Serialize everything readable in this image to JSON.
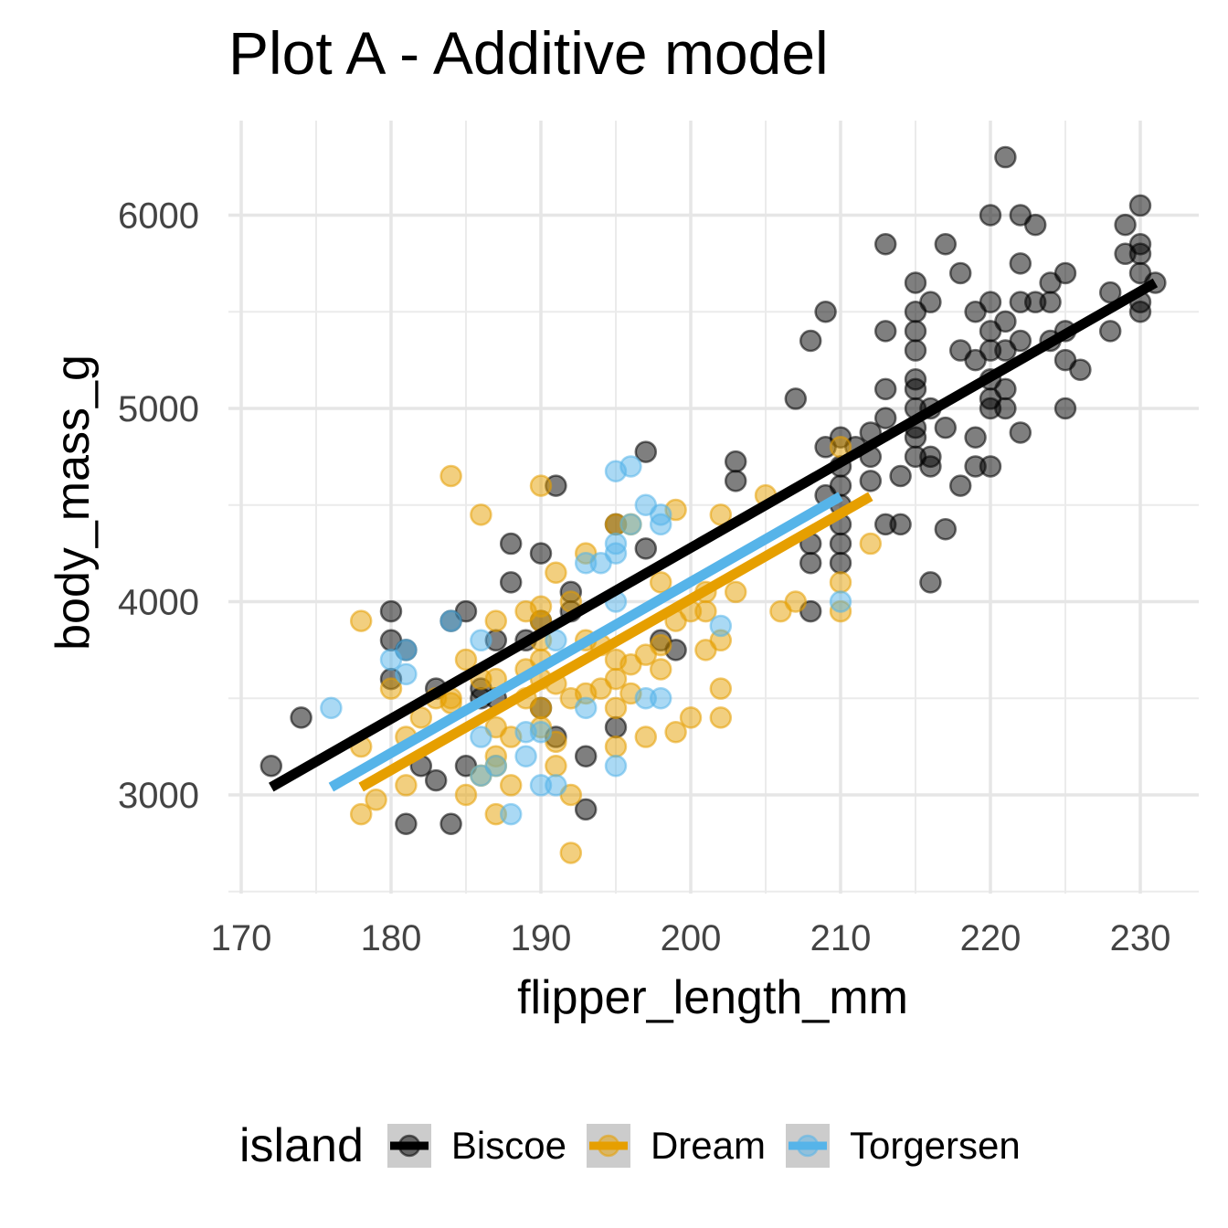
{
  "chart_data": {
    "type": "scatter",
    "title": "Plot A - Additive model",
    "xlabel": "flipper_length_mm",
    "ylabel": "body_mass_g",
    "xlim": [
      170,
      232
    ],
    "ylim": [
      2550,
      6450
    ],
    "x_ticks": [
      170,
      180,
      190,
      200,
      210,
      220,
      230
    ],
    "y_ticks": [
      3000,
      4000,
      5000,
      6000
    ],
    "grid": true,
    "legend": {
      "title": "island",
      "placement": "bottom"
    },
    "series": [
      {
        "name": "Biscoe",
        "color": "#000000",
        "points": [
          [
            172,
            3150
          ],
          [
            174,
            3400
          ],
          [
            180,
            3950
          ],
          [
            180,
            3800
          ],
          [
            180,
            3600
          ],
          [
            181,
            3750
          ],
          [
            181,
            2850
          ],
          [
            182,
            3150
          ],
          [
            183,
            3550
          ],
          [
            183,
            3075
          ],
          [
            184,
            2850
          ],
          [
            184,
            3900
          ],
          [
            185,
            3950
          ],
          [
            185,
            3150
          ],
          [
            186,
            3550
          ],
          [
            186,
            3500
          ],
          [
            187,
            3800
          ],
          [
            187,
            3500
          ],
          [
            188,
            4300
          ],
          [
            188,
            4100
          ],
          [
            189,
            3800
          ],
          [
            190,
            4250
          ],
          [
            190,
            3900
          ],
          [
            190,
            3450
          ],
          [
            191,
            4600
          ],
          [
            191,
            3300
          ],
          [
            192,
            4050
          ],
          [
            192,
            3950
          ],
          [
            193,
            3200
          ],
          [
            193,
            2925
          ],
          [
            195,
            4400
          ],
          [
            195,
            3350
          ],
          [
            197,
            4775
          ],
          [
            197,
            4275
          ],
          [
            198,
            3800
          ],
          [
            199,
            3750
          ],
          [
            203,
            4725
          ],
          [
            203,
            4625
          ],
          [
            207,
            5050
          ],
          [
            208,
            5350
          ],
          [
            208,
            4300
          ],
          [
            208,
            4200
          ],
          [
            208,
            3950
          ],
          [
            209,
            5500
          ],
          [
            209,
            4800
          ],
          [
            209,
            4550
          ],
          [
            210,
            4850
          ],
          [
            210,
            4700
          ],
          [
            210,
            4600
          ],
          [
            210,
            4500
          ],
          [
            210,
            4400
          ],
          [
            210,
            4200
          ],
          [
            210,
            4300
          ],
          [
            211,
            4800
          ],
          [
            212,
            4875
          ],
          [
            212,
            4750
          ],
          [
            212,
            4625
          ],
          [
            213,
            5850
          ],
          [
            213,
            5400
          ],
          [
            213,
            5100
          ],
          [
            213,
            4950
          ],
          [
            213,
            4400
          ],
          [
            214,
            4650
          ],
          [
            214,
            4400
          ],
          [
            215,
            5650
          ],
          [
            215,
            5500
          ],
          [
            215,
            5400
          ],
          [
            215,
            5300
          ],
          [
            215,
            5150
          ],
          [
            215,
            5100
          ],
          [
            215,
            5000
          ],
          [
            215,
            4900
          ],
          [
            215,
            4850
          ],
          [
            215,
            4750
          ],
          [
            216,
            5550
          ],
          [
            216,
            5000
          ],
          [
            216,
            4750
          ],
          [
            216,
            4700
          ],
          [
            216,
            4100
          ],
          [
            217,
            5850
          ],
          [
            217,
            4900
          ],
          [
            217,
            4375
          ],
          [
            218,
            5700
          ],
          [
            218,
            5300
          ],
          [
            218,
            4600
          ],
          [
            219,
            5500
          ],
          [
            219,
            5250
          ],
          [
            219,
            4850
          ],
          [
            219,
            4700
          ],
          [
            220,
            6000
          ],
          [
            220,
            5550
          ],
          [
            220,
            5400
          ],
          [
            220,
            5300
          ],
          [
            220,
            5150
          ],
          [
            220,
            5050
          ],
          [
            220,
            5000
          ],
          [
            220,
            4700
          ],
          [
            221,
            6300
          ],
          [
            221,
            5450
          ],
          [
            221,
            5300
          ],
          [
            221,
            5100
          ],
          [
            221,
            5000
          ],
          [
            222,
            6000
          ],
          [
            222,
            5750
          ],
          [
            222,
            5550
          ],
          [
            222,
            5350
          ],
          [
            222,
            4875
          ],
          [
            223,
            5950
          ],
          [
            223,
            5550
          ],
          [
            224,
            5650
          ],
          [
            224,
            5550
          ],
          [
            224,
            5350
          ],
          [
            225,
            5700
          ],
          [
            225,
            5400
          ],
          [
            225,
            5250
          ],
          [
            225,
            5000
          ],
          [
            226,
            5200
          ],
          [
            228,
            5600
          ],
          [
            228,
            5400
          ],
          [
            229,
            5950
          ],
          [
            229,
            5800
          ],
          [
            230,
            6050
          ],
          [
            230,
            5850
          ],
          [
            230,
            5800
          ],
          [
            230,
            5700
          ],
          [
            230,
            5550
          ],
          [
            230,
            5500
          ],
          [
            231,
            5650
          ]
        ]
      },
      {
        "name": "Dream",
        "color": "#E69F00",
        "points": [
          [
            178,
            3900
          ],
          [
            178,
            3250
          ],
          [
            178,
            2900
          ],
          [
            179,
            2975
          ],
          [
            180,
            3550
          ],
          [
            181,
            3300
          ],
          [
            181,
            3050
          ],
          [
            182,
            3400
          ],
          [
            183,
            3500
          ],
          [
            184,
            4650
          ],
          [
            184,
            3500
          ],
          [
            184,
            3475
          ],
          [
            185,
            3700
          ],
          [
            185,
            3000
          ],
          [
            186,
            4450
          ],
          [
            186,
            3600
          ],
          [
            186,
            3100
          ],
          [
            187,
            3900
          ],
          [
            187,
            3600
          ],
          [
            187,
            3350
          ],
          [
            187,
            3200
          ],
          [
            187,
            3150
          ],
          [
            187,
            2900
          ],
          [
            188,
            3300
          ],
          [
            188,
            3050
          ],
          [
            189,
            3950
          ],
          [
            189,
            3650
          ],
          [
            189,
            3500
          ],
          [
            190,
            4600
          ],
          [
            190,
            3975
          ],
          [
            190,
            3900
          ],
          [
            190,
            3800
          ],
          [
            190,
            3700
          ],
          [
            190,
            3600
          ],
          [
            190,
            3450
          ],
          [
            190,
            3350
          ],
          [
            191,
            4150
          ],
          [
            191,
            3575
          ],
          [
            191,
            3275
          ],
          [
            191,
            3150
          ],
          [
            192,
            4000
          ],
          [
            192,
            3500
          ],
          [
            192,
            3000
          ],
          [
            192,
            2700
          ],
          [
            193,
            4250
          ],
          [
            193,
            3800
          ],
          [
            193,
            3525
          ],
          [
            194,
            3775
          ],
          [
            194,
            3550
          ],
          [
            195,
            4400
          ],
          [
            195,
            3700
          ],
          [
            195,
            3600
          ],
          [
            195,
            3450
          ],
          [
            195,
            3250
          ],
          [
            196,
            4400
          ],
          [
            196,
            3675
          ],
          [
            196,
            3525
          ],
          [
            197,
            3725
          ],
          [
            197,
            3300
          ],
          [
            198,
            4100
          ],
          [
            198,
            3775
          ],
          [
            198,
            3650
          ],
          [
            199,
            4475
          ],
          [
            199,
            3900
          ],
          [
            199,
            3325
          ],
          [
            200,
            3950
          ],
          [
            200,
            3400
          ],
          [
            201,
            4050
          ],
          [
            201,
            3950
          ],
          [
            201,
            3750
          ],
          [
            202,
            4450
          ],
          [
            202,
            3800
          ],
          [
            202,
            3550
          ],
          [
            202,
            3400
          ],
          [
            203,
            4050
          ],
          [
            205,
            4550
          ],
          [
            206,
            3950
          ],
          [
            207,
            4000
          ],
          [
            210,
            4800
          ],
          [
            210,
            4100
          ],
          [
            210,
            3950
          ],
          [
            212,
            4300
          ]
        ]
      },
      {
        "name": "Torgersen",
        "color": "#56B4E9",
        "points": [
          [
            176,
            3450
          ],
          [
            180,
            3700
          ],
          [
            181,
            3750
          ],
          [
            181,
            3625
          ],
          [
            184,
            3900
          ],
          [
            186,
            3800
          ],
          [
            186,
            3300
          ],
          [
            186,
            3100
          ],
          [
            187,
            3150
          ],
          [
            188,
            2900
          ],
          [
            189,
            3325
          ],
          [
            189,
            3200
          ],
          [
            190,
            3050
          ],
          [
            190,
            3325
          ],
          [
            191,
            3050
          ],
          [
            191,
            3800
          ],
          [
            193,
            4200
          ],
          [
            193,
            3450
          ],
          [
            194,
            4200
          ],
          [
            195,
            4675
          ],
          [
            195,
            4300
          ],
          [
            195,
            4250
          ],
          [
            195,
            4000
          ],
          [
            195,
            3150
          ],
          [
            196,
            4700
          ],
          [
            196,
            4400
          ],
          [
            197,
            4500
          ],
          [
            197,
            3500
          ],
          [
            198,
            4450
          ],
          [
            198,
            4400
          ],
          [
            198,
            3500
          ],
          [
            202,
            3875
          ],
          [
            210,
            4000
          ]
        ]
      }
    ],
    "fit_lines": [
      {
        "name": "Biscoe",
        "color": "#000000",
        "x": [
          172,
          231
        ],
        "y": [
          3040,
          5650
        ]
      },
      {
        "name": "Dream",
        "color": "#E69F00",
        "x": [
          178,
          212
        ],
        "y": [
          3040,
          4545
        ]
      },
      {
        "name": "Torgersen",
        "color": "#56B4E9",
        "x": [
          176,
          210
        ],
        "y": [
          3040,
          4545
        ]
      }
    ]
  }
}
